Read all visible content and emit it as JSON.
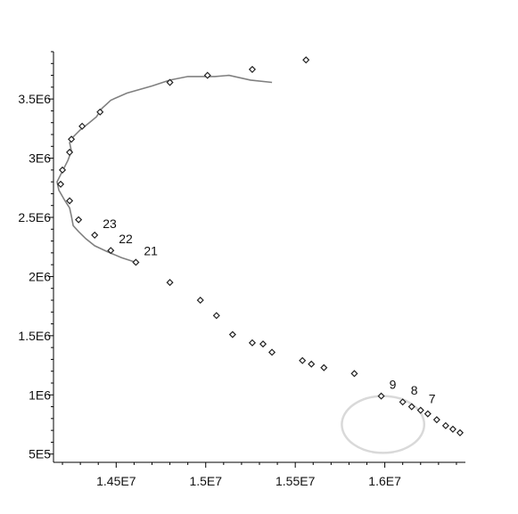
{
  "chart_data": {
    "type": "scatter",
    "title": "",
    "xlabel": "",
    "ylabel": "",
    "xlim": [
      14150000,
      16450000
    ],
    "ylim": [
      430000,
      3900000
    ],
    "xticks": [
      {
        "value": 14500000,
        "label": "1.45E7"
      },
      {
        "value": 15000000,
        "label": "1.5E7"
      },
      {
        "value": 15500000,
        "label": "1.55E7"
      },
      {
        "value": 16000000,
        "label": "1.6E7"
      }
    ],
    "yticks": [
      {
        "value": 500000,
        "label": "5E5"
      },
      {
        "value": 1000000,
        "label": "1E6"
      },
      {
        "value": 1500000,
        "label": "1.5E6"
      },
      {
        "value": 2000000,
        "label": "2E6"
      },
      {
        "value": 2500000,
        "label": "2.5E6"
      },
      {
        "value": 3000000,
        "label": "3E6"
      },
      {
        "value": 3500000,
        "label": "3.5E6"
      }
    ],
    "points": [
      {
        "x": 16420000,
        "y": 680000
      },
      {
        "x": 16380000,
        "y": 710000
      },
      {
        "x": 16340000,
        "y": 740000
      },
      {
        "x": 16290000,
        "y": 790000
      },
      {
        "x": 16240000,
        "y": 840000
      },
      {
        "x": 16200000,
        "y": 870000,
        "label": "7"
      },
      {
        "x": 16150000,
        "y": 900000
      },
      {
        "x": 16100000,
        "y": 940000,
        "label": "8"
      },
      {
        "x": 15980000,
        "y": 990000,
        "label": "9"
      },
      {
        "x": 15830000,
        "y": 1180000
      },
      {
        "x": 15660000,
        "y": 1230000
      },
      {
        "x": 15590000,
        "y": 1260000
      },
      {
        "x": 15540000,
        "y": 1290000
      },
      {
        "x": 15370000,
        "y": 1360000
      },
      {
        "x": 15320000,
        "y": 1430000
      },
      {
        "x": 15260000,
        "y": 1440000
      },
      {
        "x": 15150000,
        "y": 1510000
      },
      {
        "x": 15060000,
        "y": 1670000
      },
      {
        "x": 14970000,
        "y": 1800000
      },
      {
        "x": 14800000,
        "y": 1950000
      },
      {
        "x": 14610000,
        "y": 2120000,
        "label": "21"
      },
      {
        "x": 14470000,
        "y": 2220000,
        "label": "22"
      },
      {
        "x": 14380000,
        "y": 2350000,
        "label": "23"
      },
      {
        "x": 14290000,
        "y": 2480000
      },
      {
        "x": 14240000,
        "y": 2640000
      },
      {
        "x": 14190000,
        "y": 2780000
      },
      {
        "x": 14200000,
        "y": 2900000
      },
      {
        "x": 14240000,
        "y": 3050000
      },
      {
        "x": 14250000,
        "y": 3160000
      },
      {
        "x": 14310000,
        "y": 3270000
      },
      {
        "x": 14410000,
        "y": 3390000
      },
      {
        "x": 14800000,
        "y": 3640000
      },
      {
        "x": 15010000,
        "y": 3700000
      },
      {
        "x": 15260000,
        "y": 3750000
      },
      {
        "x": 15560000,
        "y": 3830000
      }
    ],
    "fitted_curve": [
      [
        14610000,
        2120000
      ],
      [
        14530000,
        2160000
      ],
      [
        14450000,
        2210000
      ],
      [
        14380000,
        2260000
      ],
      [
        14330000,
        2320000
      ],
      [
        14290000,
        2380000
      ],
      [
        14260000,
        2430000
      ],
      [
        14250000,
        2510000
      ],
      [
        14240000,
        2580000
      ],
      [
        14210000,
        2650000
      ],
      [
        14180000,
        2730000
      ],
      [
        14170000,
        2800000
      ],
      [
        14200000,
        2890000
      ],
      [
        14230000,
        2980000
      ],
      [
        14250000,
        3060000
      ],
      [
        14240000,
        3130000
      ],
      [
        14260000,
        3180000
      ],
      [
        14300000,
        3240000
      ],
      [
        14350000,
        3300000
      ],
      [
        14390000,
        3350000
      ],
      [
        14420000,
        3420000
      ],
      [
        14470000,
        3490000
      ],
      [
        14560000,
        3550000
      ],
      [
        14700000,
        3610000
      ],
      [
        14800000,
        3660000
      ],
      [
        14900000,
        3690000
      ],
      [
        15050000,
        3690000
      ],
      [
        15130000,
        3700000
      ],
      [
        15250000,
        3660000
      ],
      [
        15370000,
        3640000
      ]
    ],
    "ellipse": {
      "center": [
        15990000,
        750000
      ],
      "rx": 230000,
      "ry": 240000
    },
    "colors": {
      "points": "#222222",
      "curve": "#808080",
      "ellipse": "#d9d9d9",
      "axis": "#000000"
    }
  }
}
